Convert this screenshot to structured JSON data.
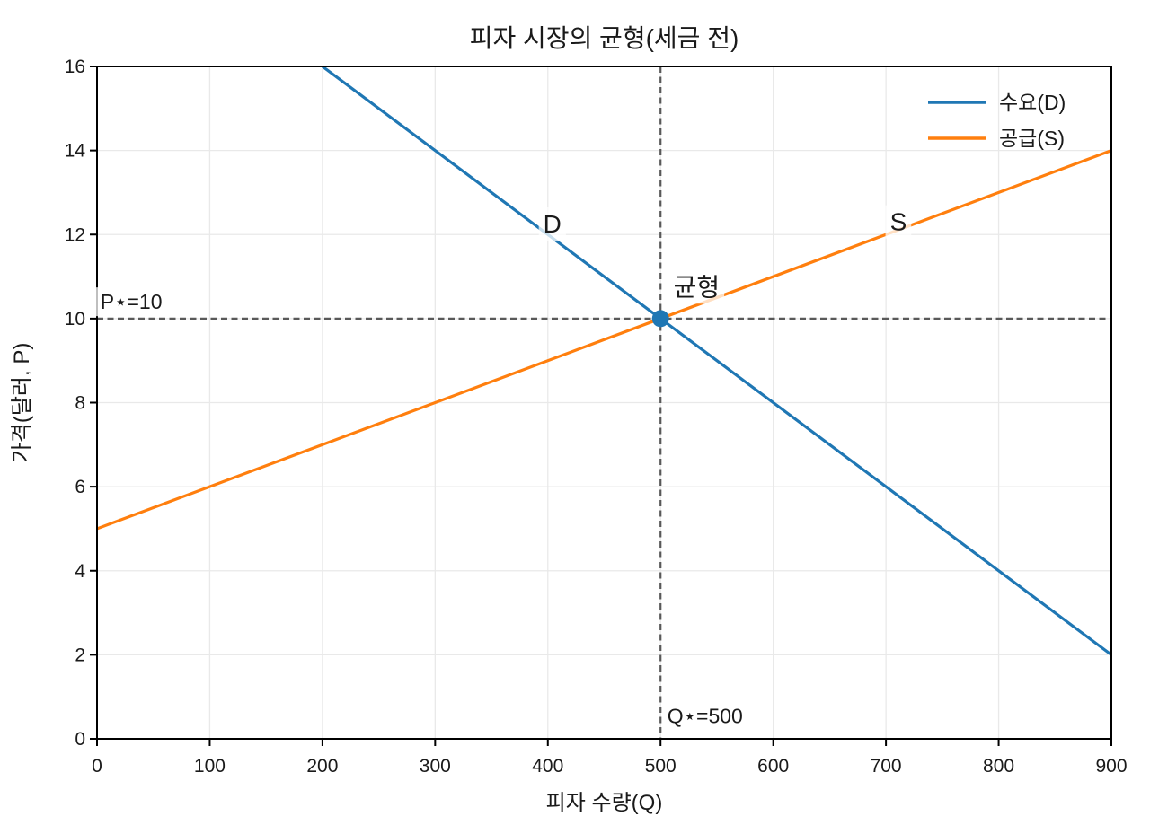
{
  "chart_data": {
    "type": "line",
    "title": "피자 시장의 균형(세금 전)",
    "xlabel": "피자 수량(Q)",
    "ylabel": "가격(달러, P)",
    "xlim": [
      0,
      900
    ],
    "ylim": [
      0,
      16
    ],
    "xticks": [
      0,
      100,
      200,
      300,
      400,
      500,
      600,
      700,
      800,
      900
    ],
    "yticks": [
      0,
      2,
      4,
      6,
      8,
      10,
      12,
      14,
      16
    ],
    "grid": true,
    "legend": {
      "position": "upper-right",
      "frame": false
    },
    "series": [
      {
        "name": "수요(D)",
        "key": "demand",
        "color": "#1f77b4",
        "points": [
          [
            200,
            16
          ],
          [
            900,
            2
          ]
        ]
      },
      {
        "name": "공급(S)",
        "key": "supply",
        "color": "#ff7f0e",
        "points": [
          [
            0,
            5
          ],
          [
            900,
            14
          ]
        ]
      }
    ],
    "equilibrium_point": {
      "x": 500,
      "y": 10,
      "color": "#1f77b4"
    },
    "reference_lines": [
      {
        "orientation": "horizontal",
        "value": 10
      },
      {
        "orientation": "vertical",
        "value": 500
      }
    ],
    "annotations": [
      {
        "id": "demand-label",
        "text": "D",
        "x": 404,
        "y": 12.25,
        "anchor": "middle",
        "size": 28
      },
      {
        "id": "supply-label",
        "text": "S",
        "x": 711,
        "y": 12.3,
        "anchor": "middle",
        "size": 28
      },
      {
        "id": "equilibrium-label",
        "text": "균형",
        "x": 532,
        "y": 10.75,
        "anchor": "middle",
        "size": 28
      },
      {
        "id": "price-star-label",
        "text": "P⋆=10",
        "x": 3,
        "y": 10.4,
        "anchor": "start",
        "size": 23
      },
      {
        "id": "quantity-star-label",
        "text": "Q⋆=500",
        "x": 506,
        "y": 0.55,
        "anchor": "start",
        "size": 23
      }
    ],
    "colors": {
      "demand": "#1f77b4",
      "supply": "#ff7f0e",
      "dashed": "#595959",
      "grid": "#e9e9e9",
      "spine": "#000000",
      "text": "#1a1a1a",
      "background": "#ffffff",
      "label_bbox": "rgba(255,255,255,0.75)"
    }
  }
}
